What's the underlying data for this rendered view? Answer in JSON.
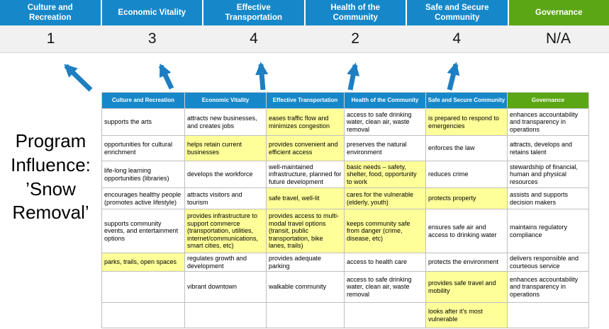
{
  "slide_title": "Program Influence: ’Snow Removal’",
  "colors": {
    "pillar_blue": "#1688c9",
    "pillar_green": "#5ba614",
    "highlight_yellow": "#ffff99",
    "arrow_blue": "#1d7ec2",
    "score_band_gray": "#f1f1f1"
  },
  "pillars": [
    {
      "label": "Culture and Recreation",
      "score": "1",
      "type": "blue"
    },
    {
      "label": "Economic Vitality",
      "score": "3",
      "type": "blue"
    },
    {
      "label": "Effective Transportation",
      "score": "4",
      "type": "blue"
    },
    {
      "label": "Health of the Community",
      "score": "2",
      "type": "blue"
    },
    {
      "label": "Safe and Secure Community",
      "score": "4",
      "type": "blue"
    },
    {
      "label": "Governance",
      "score": "N/A",
      "type": "green"
    }
  ],
  "matrix": {
    "headers": [
      {
        "label": "Culture and Recreation",
        "type": "blue"
      },
      {
        "label": "Economic Vitality",
        "type": "blue"
      },
      {
        "label": "Effective Transportation",
        "type": "blue"
      },
      {
        "label": "Health of the Community",
        "type": "blue"
      },
      {
        "label": "Safe and Secure Community",
        "type": "blue"
      },
      {
        "label": "Governance",
        "type": "green"
      }
    ],
    "rows": [
      [
        {
          "text": "supports the arts",
          "highlight": false
        },
        {
          "text": "attracts new businesses, and creates jobs",
          "highlight": false
        },
        {
          "text": "eases traffic flow and minimizes congestion",
          "highlight": true
        },
        {
          "text": "access to safe drinking water, clean air, waste removal",
          "highlight": false
        },
        {
          "text": "is prepared to respond to emergencies",
          "highlight": true
        },
        {
          "text": "enhances accountability and transparency in operations",
          "highlight": false
        }
      ],
      [
        {
          "text": "opportunities for cultural enrichment",
          "highlight": false
        },
        {
          "text": "helps retain current businesses",
          "highlight": true
        },
        {
          "text": "provides convenient and efficient access",
          "highlight": true
        },
        {
          "text": "preserves the natural environment",
          "highlight": false
        },
        {
          "text": "enforces the law",
          "highlight": false
        },
        {
          "text": "attracts, develops and retains talent",
          "highlight": false
        }
      ],
      [
        {
          "text": "life-long learning opportunities (libraries)",
          "highlight": false
        },
        {
          "text": "develops the workforce",
          "highlight": false
        },
        {
          "text": "well-maintained infrastructure, planned for future development",
          "highlight": false
        },
        {
          "text": "basic needs – safety, shelter, food, opportunity to work",
          "highlight": true
        },
        {
          "text": "reduces crime",
          "highlight": false
        },
        {
          "text": "stewardship of financial, human and physical resources",
          "highlight": false
        }
      ],
      [
        {
          "text": "encourages healthy people (promotes active lifestyle)",
          "highlight": false
        },
        {
          "text": "attracts visitors and tourism",
          "highlight": false
        },
        {
          "text": "safe travel, well-lit",
          "highlight": true
        },
        {
          "text": "cares for the vulnerable (elderly, youth)",
          "highlight": true
        },
        {
          "text": "protects property",
          "highlight": true
        },
        {
          "text": "assists and supports decision makers",
          "highlight": false
        }
      ],
      [
        {
          "text": "supports community events, and entertainment options",
          "highlight": false
        },
        {
          "text": "provides infrastructure to support commerce (transportation, utilities, internet/communications, smart cities, etc)",
          "highlight": true
        },
        {
          "text": "provides access to multi-modal travel options (transit, public transportation, bike lanes, trails)",
          "highlight": true
        },
        {
          "text": "keeps community safe from danger (crime, disease, etc)",
          "highlight": true
        },
        {
          "text": "ensures safe air and access to drinking water",
          "highlight": false
        },
        {
          "text": "maintains regulatory compliance",
          "highlight": false
        }
      ],
      [
        {
          "text": "parks, trails, open spaces",
          "highlight": true
        },
        {
          "text": "regulates growth and development",
          "highlight": false
        },
        {
          "text": "provides adequate parking",
          "highlight": false
        },
        {
          "text": "access to health care",
          "highlight": false
        },
        {
          "text": "protects the environment",
          "highlight": false
        },
        {
          "text": "delivers responsible and courteous service",
          "highlight": false
        }
      ],
      [
        {
          "text": "",
          "highlight": false
        },
        {
          "text": "vibrant downtown",
          "highlight": false
        },
        {
          "text": "walkable community",
          "highlight": false
        },
        {
          "text": "access to safe drinking water, clean air, waste removal",
          "highlight": false
        },
        {
          "text": "provides safe travel and mobility",
          "highlight": true
        },
        {
          "text": "enhances accountability and transparency in operations",
          "highlight": false
        }
      ],
      [
        {
          "text": "",
          "highlight": false
        },
        {
          "text": "",
          "highlight": false
        },
        {
          "text": "",
          "highlight": false
        },
        {
          "text": "",
          "highlight": false
        },
        {
          "text": "looks after it's most vulnerable",
          "highlight": true
        },
        {
          "text": "",
          "highlight": false
        }
      ]
    ]
  }
}
